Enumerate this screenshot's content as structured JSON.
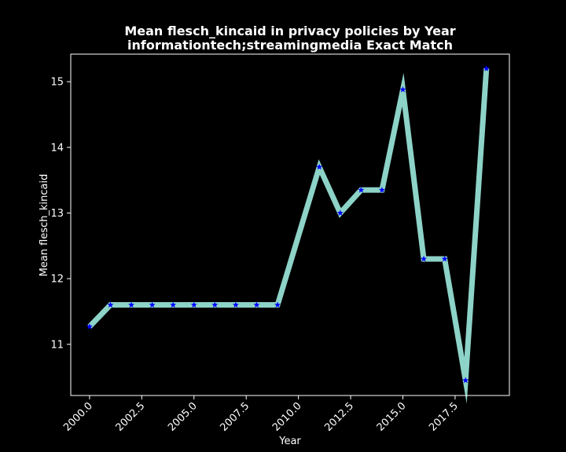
{
  "chart_data": {
    "type": "line",
    "title": "Mean flesch_kincaid in privacy policies by Year",
    "subtitle": "informationtech;streamingmedia Exact Match",
    "xlabel": "Year",
    "ylabel": "Mean flesch_kincaid",
    "xlim": [
      1999.1,
      2020.1
    ],
    "ylim": [
      10.22,
      15.42
    ],
    "x_ticks": [
      2000.0,
      2002.5,
      2005.0,
      2007.5,
      2010.0,
      2012.5,
      2015.0,
      2017.5
    ],
    "x_tick_labels": [
      "2000.0",
      "2002.5",
      "2005.0",
      "2007.5",
      "2010.0",
      "2012.5",
      "2015.0",
      "2017.5"
    ],
    "y_ticks": [
      11,
      12,
      13,
      14,
      15
    ],
    "y_tick_labels": [
      "11",
      "12",
      "13",
      "14",
      "15"
    ],
    "grid": false,
    "series": [
      {
        "line_color": "#8dd3c7",
        "marker_color": "#0000ff",
        "marker": "star",
        "x": [
          2000,
          2001,
          2002,
          2003,
          2004,
          2005,
          2006,
          2007,
          2008,
          2009,
          2011,
          2012,
          2013,
          2014,
          2015,
          2016,
          2017,
          2018,
          2019
        ],
        "y": [
          11.27,
          11.6,
          11.6,
          11.6,
          11.6,
          11.6,
          11.6,
          11.6,
          11.6,
          11.6,
          13.7,
          13.0,
          13.35,
          13.35,
          14.88,
          12.3,
          12.3,
          10.45,
          15.2
        ]
      }
    ]
  }
}
